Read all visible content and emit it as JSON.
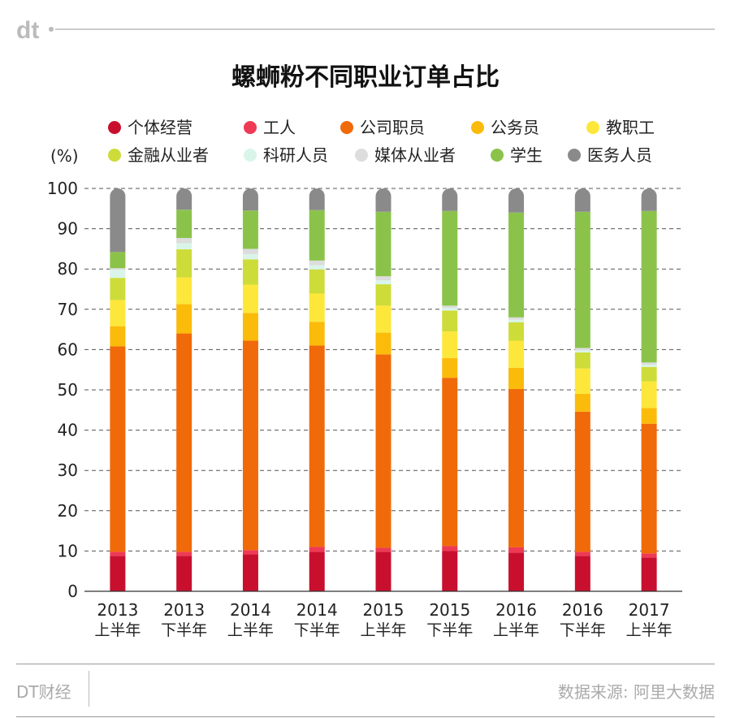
{
  "brand": {
    "logo_text": "dt",
    "footer_brand": "DT财经"
  },
  "source": "数据来源: 阿里大数据",
  "chart_data": {
    "type": "bar",
    "stacked": true,
    "title": "螺蛳粉不同职业订单占比",
    "ylabel": "(%)",
    "ylim": [
      0,
      100
    ],
    "yticks": [
      0,
      10,
      20,
      30,
      40,
      50,
      60,
      70,
      80,
      90,
      100
    ],
    "grid": true,
    "categories": [
      [
        "2013",
        "上半年"
      ],
      [
        "2013",
        "下半年"
      ],
      [
        "2014",
        "上半年"
      ],
      [
        "2014",
        "下半年"
      ],
      [
        "2015",
        "上半年"
      ],
      [
        "2015",
        "下半年"
      ],
      [
        "2016",
        "上半年"
      ],
      [
        "2016",
        "下半年"
      ],
      [
        "2017",
        "上半年"
      ]
    ],
    "series": [
      {
        "name": "个体经营",
        "color": "#c8102e",
        "values": [
          8.8,
          8.8,
          9.2,
          9.8,
          9.8,
          10.0,
          9.6,
          8.8,
          8.4
        ]
      },
      {
        "name": "工人",
        "color": "#ee3a55",
        "values": [
          1.0,
          1.0,
          1.0,
          1.2,
          1.0,
          1.2,
          1.3,
          1.0,
          1.0
        ]
      },
      {
        "name": "公司职员",
        "color": "#f06a0a",
        "values": [
          51.0,
          54.2,
          52.0,
          50.0,
          48.0,
          41.8,
          39.3,
          34.8,
          32.2
        ]
      },
      {
        "name": "公务员",
        "color": "#fbbb0a",
        "values": [
          5.0,
          7.3,
          6.9,
          5.9,
          5.4,
          4.9,
          5.3,
          4.4,
          3.9
        ]
      },
      {
        "name": "教职工",
        "color": "#fde73a",
        "values": [
          6.5,
          6.6,
          7.0,
          7.0,
          6.7,
          6.6,
          6.7,
          6.3,
          6.6
        ]
      },
      {
        "name": "金融从业者",
        "color": "#cddc39",
        "values": [
          5.5,
          7.0,
          6.3,
          6.0,
          5.3,
          5.2,
          4.6,
          4.0,
          3.6
        ]
      },
      {
        "name": "科研人员",
        "color": "#d9f5ea",
        "values": [
          2.0,
          1.5,
          1.3,
          1.0,
          1.0,
          0.6,
          0.6,
          0.5,
          0.5
        ]
      },
      {
        "name": "媒体从业者",
        "color": "#dddddd",
        "values": [
          0.4,
          1.3,
          1.3,
          1.2,
          1.0,
          0.6,
          0.6,
          0.6,
          0.6
        ]
      },
      {
        "name": "学生",
        "color": "#8bc34a",
        "values": [
          4.0,
          7.0,
          9.5,
          12.5,
          16.0,
          23.5,
          26.0,
          33.8,
          37.6
        ]
      },
      {
        "name": "医务人员",
        "color": "#8a8a8a",
        "values": [
          15.8,
          5.3,
          5.5,
          5.4,
          5.8,
          5.6,
          6.0,
          5.8,
          5.6
        ]
      }
    ],
    "legend_position": "top"
  }
}
